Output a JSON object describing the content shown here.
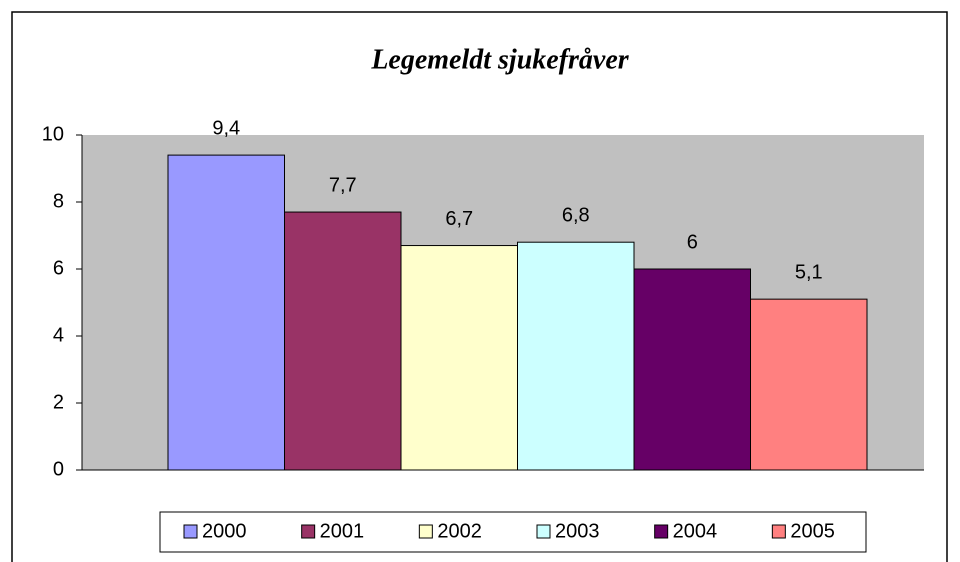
{
  "chart_data": {
    "type": "bar",
    "title": "Legemeldt sjukefråver",
    "categories": [
      null
    ],
    "series": [
      {
        "name": "2000",
        "color": "#9999ff",
        "values": [
          9.4
        ],
        "value_labels": [
          "9,4"
        ]
      },
      {
        "name": "2001",
        "color": "#993366",
        "values": [
          7.7
        ],
        "value_labels": [
          "7,7"
        ]
      },
      {
        "name": "2002",
        "color": "#ffffcc",
        "values": [
          6.7
        ],
        "value_labels": [
          "6,7"
        ]
      },
      {
        "name": "2003",
        "color": "#ccffff",
        "values": [
          6.8
        ],
        "value_labels": [
          "6,8"
        ]
      },
      {
        "name": "2004",
        "color": "#660066",
        "values": [
          6
        ],
        "value_labels": [
          "6"
        ]
      },
      {
        "name": "2005",
        "color": "#ff8080",
        "values": [
          5.1
        ],
        "value_labels": [
          "5,1"
        ]
      }
    ],
    "ylim": [
      0,
      10
    ],
    "yticks": [
      0,
      2,
      4,
      6,
      8,
      10
    ],
    "plot_background": "#c0c0c0",
    "legend": "bottom"
  }
}
